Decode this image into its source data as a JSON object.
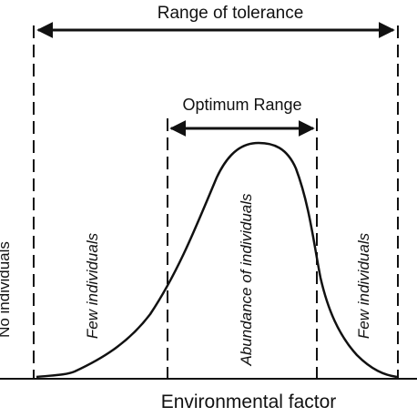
{
  "diagram": {
    "range_of_tolerance_label": "Range of tolerance",
    "optimum_range_label": "Optimum Range",
    "x_axis_label": "Environmental factor",
    "y_axis_label": "No individuals",
    "zones": {
      "left": "Few individuals",
      "center": "Abundance of individuals",
      "right": "Few individuals"
    }
  }
}
